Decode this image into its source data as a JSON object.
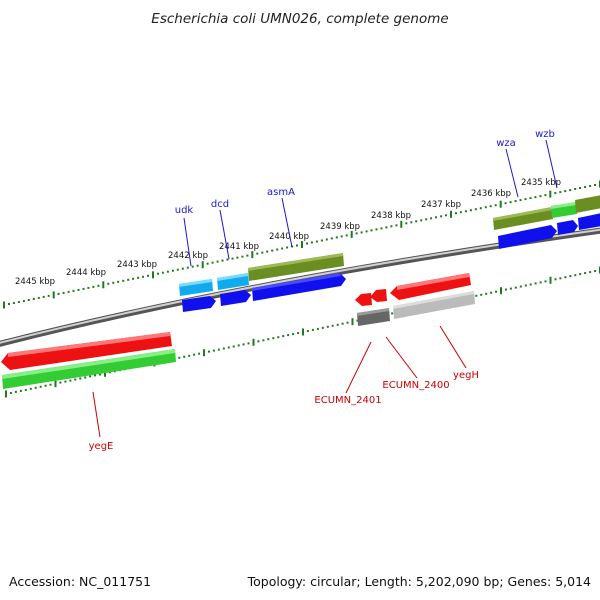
{
  "title": "Escherichia coli UMN026, complete genome",
  "footer": {
    "accession": "Accession: NC_011751",
    "stats": "Topology: circular; Length: 5,202,090 bp; Genes: 5,014"
  },
  "scale_labels": [
    "2445 kbp",
    "2444 kbp",
    "2443 kbp",
    "2442 kbp",
    "2441 kbp",
    "2440 kbp",
    "2439 kbp",
    "2438 kbp",
    "2437 kbp",
    "2436 kbp",
    "2435 kbp"
  ],
  "gene_labels_top": [
    "udk",
    "dcd",
    "asmA",
    "wza",
    "wzb"
  ],
  "gene_labels_bottom": [
    "yegE",
    "ECUMN_2401",
    "ECUMN_2400",
    "yegH"
  ],
  "colors": {
    "backbone": "#7a7a7a",
    "tick": "#1f7a1f",
    "cds_forward": "#1010ee",
    "cds_reverse": "#ee1111",
    "gene_forward": "#6b8e23",
    "gene_reverse": "#33cc33",
    "highlight_cyan": "#11aaee",
    "gray_dark": "#666666",
    "gray_light": "#bbbbbb"
  }
}
